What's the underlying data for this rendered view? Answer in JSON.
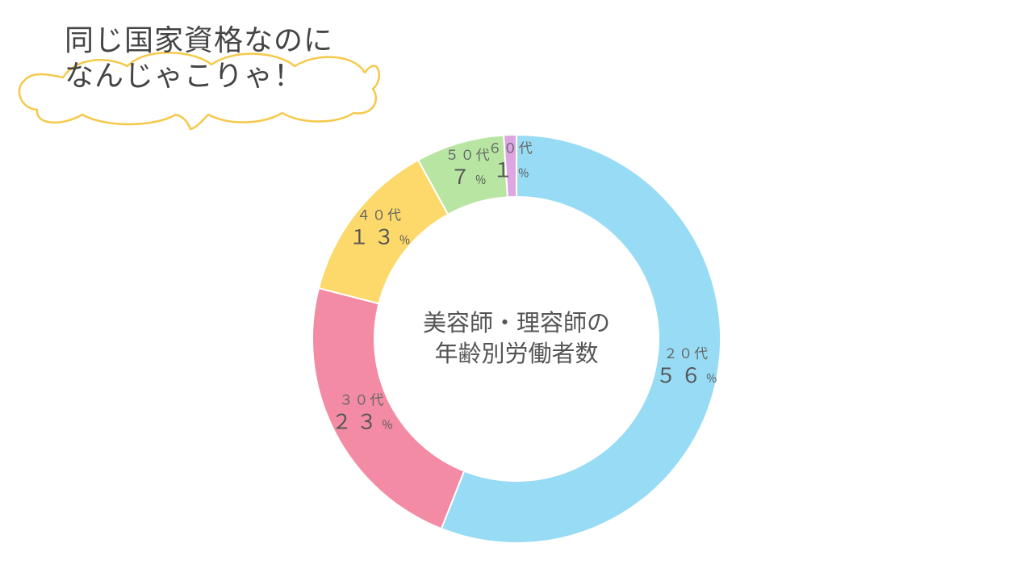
{
  "speech_bubble": {
    "line1": "同じ国家資格なのに",
    "line2": "なんじゃこりゃ！",
    "outline_color": "#f5c94a"
  },
  "chart_data": {
    "type": "pie",
    "style": "donut",
    "title_lines": [
      "美容師・理容師の",
      "年齢別労働者数"
    ],
    "categories": [
      "２０代",
      "３０代",
      "４０代",
      "５０代",
      "６０代"
    ],
    "values": [
      56,
      23,
      13,
      7,
      1
    ],
    "value_labels": [
      "５６",
      "２３",
      "１３",
      "７",
      "１"
    ],
    "unit": "％",
    "colors": [
      "#98dbf5",
      "#f28ba3",
      "#fcd96a",
      "#b8e6a2",
      "#dda6e3"
    ]
  }
}
